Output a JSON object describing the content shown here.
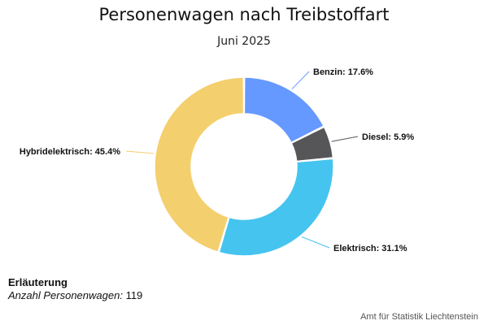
{
  "chart_data": {
    "type": "pie",
    "title": "Personenwagen nach Treibstoffart",
    "subtitle": "Juni 2025",
    "slices": [
      {
        "label": "Benzin",
        "value": 17.6,
        "color": "#6699ff"
      },
      {
        "label": "Diesel",
        "value": 5.9,
        "color": "#565658"
      },
      {
        "label": "Elektrisch",
        "value": 31.1,
        "color": "#45c4f0"
      },
      {
        "label": "Hybridelektrisch",
        "value": 45.4,
        "color": "#f4cf6e"
      }
    ],
    "unit": "%"
  },
  "legend": {
    "heading": "Erläuterung",
    "label": "Anzahl Personenwagen:",
    "value": "119"
  },
  "source": "Amt für Statistik Liechtenstein"
}
